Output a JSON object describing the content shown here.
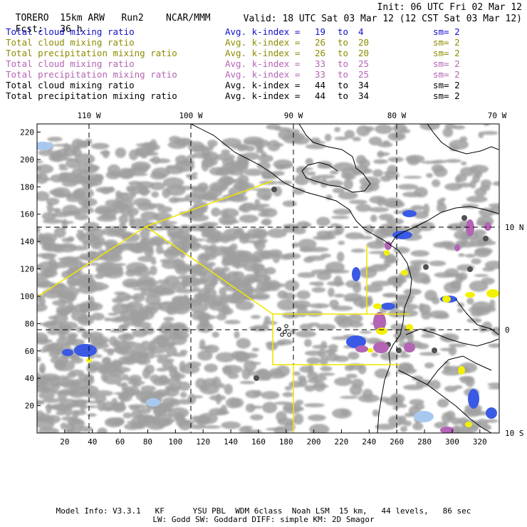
{
  "header": {
    "model": "TORERO",
    "resolution": "15km ARW",
    "run": "Run2",
    "org": "NCAR/MMM",
    "fcst_label": "Fcst:",
    "fcst_value": "36 h",
    "init": "Init: 06 UTC Fri 02 Mar 12",
    "valid": "Valid: 18 UTC Sat 03 Mar 12 (12 CST Sat 03 Mar 12)"
  },
  "fields": [
    {
      "name": "Total cloud mixing ratio",
      "kindex": "Avg. k-index =",
      "from": "19",
      "to_word": "to",
      "to": "4",
      "sm": "sm= 2",
      "color": "#1010c8"
    },
    {
      "name": "Total cloud mixing ratio",
      "kindex": "Avg. k-index =",
      "from": "26",
      "to_word": "to",
      "to": "20",
      "sm": "sm= 2",
      "color": "#8c8c00"
    },
    {
      "name": "Total precipitation mixing ratio",
      "kindex": "Avg. k-index =",
      "from": "26",
      "to_word": "to",
      "to": "20",
      "sm": "sm= 2",
      "color": "#8c8c00"
    },
    {
      "name": "Total cloud mixing ratio",
      "kindex": "Avg. k-index =",
      "from": "33",
      "to_word": "to",
      "to": "25",
      "sm": "sm= 2",
      "color": "#b464b4"
    },
    {
      "name": "Total precipitation mixing ratio",
      "kindex": "Avg. k-index =",
      "from": "33",
      "to_word": "to",
      "to": "25",
      "sm": "sm= 2",
      "color": "#b464b4"
    },
    {
      "name": "Total cloud mixing ratio",
      "kindex": "Avg. k-index =",
      "from": "44",
      "to_word": "to",
      "to": "34",
      "sm": "sm= 2",
      "color": "#000000"
    },
    {
      "name": "Total precipitation mixing ratio",
      "kindex": "Avg. k-index =",
      "from": "44",
      "to_word": "to",
      "to": "34",
      "sm": "sm= 2",
      "color": "#000000"
    }
  ],
  "map": {
    "lon_labels": [
      "110 W",
      "100 W",
      "90 W",
      "80 W",
      "70 W"
    ],
    "lat_labels": [
      "10 N",
      "0",
      "10 S"
    ],
    "x_ticks": [
      "20",
      "40",
      "60",
      "80",
      "100",
      "120",
      "140",
      "160",
      "180",
      "200",
      "220",
      "240",
      "260",
      "280",
      "300",
      "320"
    ],
    "y_ticks": [
      "20",
      "40",
      "60",
      "80",
      "100",
      "120",
      "140",
      "160",
      "180",
      "200",
      "220"
    ],
    "x_range": [
      0,
      334
    ],
    "y_range": [
      0,
      226
    ],
    "colors": {
      "cloud_gray": "#a0a0a0",
      "dark_core": "#505050",
      "blue": "#3a5ae6",
      "light_blue": "#a8c8f0",
      "purple": "#b464b4",
      "yellow": "#f2f200",
      "domain_line": "#f2e600"
    }
  },
  "footer": {
    "line1": "Model Info: V3.3.1   KF      YSU PBL  WDM 6class  Noah LSM  15 km,   44 levels,   86 sec",
    "line2": "LW: Godd SW: Goddard DIFF: simple KM: 2D Smagor"
  }
}
